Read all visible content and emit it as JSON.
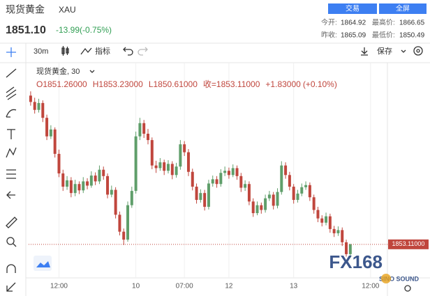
{
  "header": {
    "symbol": "现货黄金",
    "code": "XAU",
    "buttons": [
      "交易",
      "全屏"
    ],
    "price": "1851.10",
    "change": "-13.99(-0.75%)",
    "stats": [
      {
        "label": "今开:",
        "value": "1864.92"
      },
      {
        "label": "最高价:",
        "value": "1866.65"
      },
      {
        "label": "昨收:",
        "value": "1865.09"
      },
      {
        "label": "最低价:",
        "value": "1850.49"
      }
    ]
  },
  "toolbar": {
    "interval": "30m",
    "indicators": "指标",
    "save": "保存"
  },
  "watermark": {
    "brand": "FX168",
    "sub": "SINO SOUND"
  },
  "chart_data": {
    "type": "candlestick",
    "legend_title": "现货黄金, 30",
    "ohlc_text": [
      "O1851.26000",
      "H1853.23000",
      "L1850.61000",
      "收=1853.11000",
      "+1.83000",
      "(+0.10%)"
    ],
    "up_color": "#5f9e6a",
    "down_color": "#c0463d",
    "last_price": {
      "value": 1853.11,
      "label": "1853.11000"
    },
    "ylim": [
      1847.3,
      1886.1
    ],
    "xlim": [
      -0.5,
      88
    ],
    "xticks": [
      {
        "value": 7,
        "label": "12:00"
      },
      {
        "value": 26,
        "label": "10"
      },
      {
        "value": 38,
        "label": "07:00"
      },
      {
        "value": 49,
        "label": "12"
      },
      {
        "value": 65,
        "label": "13"
      },
      {
        "value": 84,
        "label": "12:00"
      }
    ],
    "candles": [
      [
        1881.2,
        1882.0,
        1879.3,
        1880.0
      ],
      [
        1880.0,
        1880.8,
        1877.8,
        1878.5
      ],
      [
        1878.5,
        1880.6,
        1878.0,
        1879.8
      ],
      [
        1879.8,
        1880.3,
        1876.2,
        1877.0
      ],
      [
        1877.0,
        1877.6,
        1872.8,
        1873.5
      ],
      [
        1873.5,
        1875.6,
        1873.0,
        1874.8
      ],
      [
        1874.8,
        1875.2,
        1869.5,
        1870.2
      ],
      [
        1870.2,
        1871.0,
        1865.8,
        1866.5
      ],
      [
        1866.5,
        1867.2,
        1863.2,
        1864.0
      ],
      [
        1864.0,
        1866.0,
        1863.4,
        1865.2
      ],
      [
        1865.2,
        1865.8,
        1862.0,
        1862.8
      ],
      [
        1862.8,
        1865.3,
        1862.2,
        1864.5
      ],
      [
        1864.5,
        1865.0,
        1862.6,
        1863.3
      ],
      [
        1863.3,
        1865.8,
        1862.8,
        1865.0
      ],
      [
        1865.0,
        1865.6,
        1863.5,
        1864.2
      ],
      [
        1864.2,
        1866.9,
        1863.8,
        1866.1
      ],
      [
        1866.1,
        1866.7,
        1864.3,
        1865.0
      ],
      [
        1865.0,
        1868.0,
        1864.5,
        1867.2
      ],
      [
        1867.2,
        1867.8,
        1865.3,
        1866.0
      ],
      [
        1866.0,
        1866.5,
        1861.8,
        1862.5
      ],
      [
        1862.5,
        1864.2,
        1862.0,
        1863.4
      ],
      [
        1863.4,
        1863.9,
        1858.0,
        1858.7
      ],
      [
        1858.7,
        1859.3,
        1854.8,
        1855.5
      ],
      [
        1855.5,
        1856.1,
        1853.0,
        1854.0
      ],
      [
        1854.0,
        1861.2,
        1853.6,
        1860.5
      ],
      [
        1860.5,
        1864.0,
        1860.0,
        1863.2
      ],
      [
        1863.2,
        1874.4,
        1862.7,
        1873.5
      ],
      [
        1873.5,
        1877.0,
        1872.8,
        1876.0
      ],
      [
        1876.0,
        1876.6,
        1873.2,
        1874.0
      ],
      [
        1874.0,
        1874.9,
        1872.0,
        1872.8
      ],
      [
        1872.8,
        1873.3,
        1867.3,
        1868.0
      ],
      [
        1868.0,
        1868.9,
        1866.6,
        1867.5
      ],
      [
        1867.5,
        1869.4,
        1867.0,
        1868.6
      ],
      [
        1868.6,
        1869.1,
        1866.2,
        1867.0
      ],
      [
        1867.0,
        1869.0,
        1866.5,
        1868.3
      ],
      [
        1868.3,
        1868.8,
        1865.4,
        1866.2
      ],
      [
        1866.2,
        1868.5,
        1865.7,
        1867.8
      ],
      [
        1867.8,
        1872.8,
        1867.2,
        1872.0
      ],
      [
        1872.0,
        1872.6,
        1869.8,
        1870.5
      ],
      [
        1870.5,
        1871.1,
        1866.0,
        1866.8
      ],
      [
        1866.8,
        1867.4,
        1863.3,
        1864.0
      ],
      [
        1864.0,
        1864.6,
        1860.8,
        1861.5
      ],
      [
        1861.5,
        1863.5,
        1861.0,
        1862.8
      ],
      [
        1862.8,
        1863.4,
        1859.5,
        1860.2
      ],
      [
        1860.2,
        1865.3,
        1859.7,
        1864.6
      ],
      [
        1864.6,
        1866.1,
        1864.0,
        1865.4
      ],
      [
        1865.4,
        1866.0,
        1863.8,
        1864.5
      ],
      [
        1864.5,
        1867.3,
        1864.0,
        1866.6
      ],
      [
        1866.6,
        1867.8,
        1866.0,
        1867.0
      ],
      [
        1867.0,
        1867.6,
        1865.5,
        1866.2
      ],
      [
        1866.2,
        1868.2,
        1865.8,
        1867.5
      ],
      [
        1867.5,
        1868.0,
        1865.3,
        1866.0
      ],
      [
        1866.0,
        1866.6,
        1863.0,
        1863.8
      ],
      [
        1863.8,
        1865.2,
        1863.2,
        1864.5
      ],
      [
        1864.5,
        1865.0,
        1860.5,
        1861.2
      ],
      [
        1861.2,
        1861.8,
        1858.3,
        1859.0
      ],
      [
        1859.0,
        1861.2,
        1858.6,
        1860.5
      ],
      [
        1860.5,
        1861.0,
        1858.9,
        1859.6
      ],
      [
        1859.6,
        1862.5,
        1859.1,
        1861.8
      ],
      [
        1861.8,
        1863.2,
        1861.3,
        1862.5
      ],
      [
        1862.5,
        1863.0,
        1859.7,
        1860.4
      ],
      [
        1860.4,
        1863.7,
        1859.9,
        1863.0
      ],
      [
        1863.0,
        1868.8,
        1862.5,
        1868.0
      ],
      [
        1868.0,
        1868.6,
        1865.5,
        1866.2
      ],
      [
        1866.2,
        1866.8,
        1863.3,
        1864.0
      ],
      [
        1864.0,
        1864.5,
        1860.8,
        1861.5
      ],
      [
        1861.5,
        1863.4,
        1861.0,
        1862.7
      ],
      [
        1862.7,
        1864.6,
        1862.2,
        1863.9
      ],
      [
        1863.9,
        1865.0,
        1863.4,
        1864.3
      ],
      [
        1864.3,
        1864.8,
        1861.3,
        1862.0
      ],
      [
        1862.0,
        1862.5,
        1858.9,
        1859.6
      ],
      [
        1859.6,
        1860.2,
        1857.3,
        1858.0
      ],
      [
        1858.0,
        1858.6,
        1856.5,
        1857.2
      ],
      [
        1857.2,
        1859.1,
        1856.7,
        1858.4
      ],
      [
        1858.4,
        1858.9,
        1855.3,
        1856.0
      ],
      [
        1856.0,
        1856.6,
        1854.5,
        1855.2
      ],
      [
        1855.2,
        1856.5,
        1854.7,
        1855.8
      ],
      [
        1855.8,
        1856.3,
        1852.8,
        1853.5
      ],
      [
        1853.5,
        1854.0,
        1850.8,
        1851.26
      ],
      [
        1851.26,
        1853.23,
        1850.61,
        1853.11
      ]
    ]
  }
}
